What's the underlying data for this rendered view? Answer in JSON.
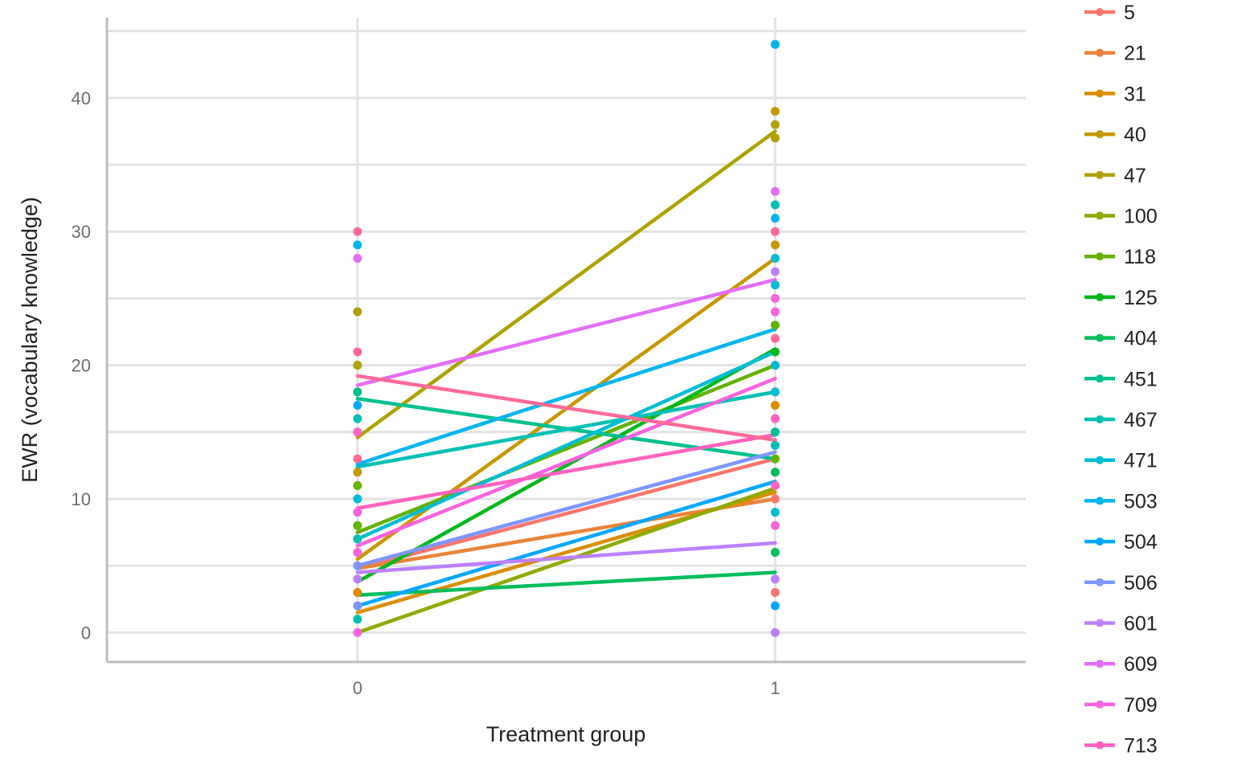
{
  "chart_data": {
    "type": "line",
    "xlabel": "Treatment group",
    "ylabel": "EWR (vocabulary knowledge)",
    "x_categories": [
      "0",
      "1"
    ],
    "xlim": [
      -0.6,
      1.6
    ],
    "ylim": [
      -2.2,
      46
    ],
    "y_ticks": [
      0,
      10,
      20,
      30,
      40
    ],
    "y_minor_ticks": [
      5,
      15,
      25,
      35,
      45
    ],
    "grid": true,
    "legend_position": "right",
    "series": [
      {
        "name": "5",
        "color": "#F8766D",
        "line": [
          4.8,
          13.0
        ]
      },
      {
        "name": "21",
        "color": "#EC8239",
        "line": [
          4.8,
          10.0
        ]
      },
      {
        "name": "31",
        "color": "#DB8E00",
        "line": [
          1.5,
          10.5
        ]
      },
      {
        "name": "40",
        "color": "#C79800",
        "line": [
          5.5,
          28.0
        ]
      },
      {
        "name": "47",
        "color": "#AEA200",
        "line": [
          14.6,
          37.5
        ]
      },
      {
        "name": "100",
        "color": "#8FAA00",
        "line": [
          0.0,
          10.8
        ]
      },
      {
        "name": "118",
        "color": "#64B200",
        "line": [
          7.5,
          20.0
        ]
      },
      {
        "name": "125",
        "color": "#00B81B",
        "line": [
          3.8,
          21.2
        ]
      },
      {
        "name": "404",
        "color": "#00BD5C",
        "line": [
          2.8,
          4.5
        ]
      },
      {
        "name": "451",
        "color": "#00C08E",
        "line": [
          17.5,
          13.0
        ]
      },
      {
        "name": "467",
        "color": "#00C0B4",
        "line": [
          12.4,
          18.0
        ]
      },
      {
        "name": "471",
        "color": "#00BDD4",
        "line": [
          7.0,
          21.0
        ]
      },
      {
        "name": "503",
        "color": "#00B5EE",
        "line": [
          12.6,
          22.7
        ]
      },
      {
        "name": "504",
        "color": "#00A7FF",
        "line": [
          2.0,
          11.3
        ]
      },
      {
        "name": "506",
        "color": "#7F96FF",
        "line": [
          5.0,
          13.5
        ]
      },
      {
        "name": "601",
        "color": "#BC81FF",
        "line": [
          4.5,
          6.7
        ]
      },
      {
        "name": "609",
        "color": "#E26EF7",
        "line": [
          18.5,
          26.4
        ]
      },
      {
        "name": "709",
        "color": "#F863DF",
        "line": [
          6.5,
          19.0
        ]
      },
      {
        "name": "713",
        "color": "#FF62BF",
        "line": [
          9.3,
          14.8
        ]
      },
      {
        "name": "",
        "color": "#FF6A98",
        "line": [
          19.2,
          14.4
        ]
      }
    ],
    "points": [
      {
        "x": "0",
        "y": 30,
        "color": "#FF6A98"
      },
      {
        "x": "0",
        "y": 29,
        "color": "#00B5EE"
      },
      {
        "x": "0",
        "y": 28,
        "color": "#E26EF7"
      },
      {
        "x": "0",
        "y": 24,
        "color": "#AEA200"
      },
      {
        "x": "0",
        "y": 21,
        "color": "#FF6A98"
      },
      {
        "x": "0",
        "y": 20,
        "color": "#AEA200"
      },
      {
        "x": "0",
        "y": 18,
        "color": "#00C08E"
      },
      {
        "x": "0",
        "y": 17,
        "color": "#00A7FF"
      },
      {
        "x": "0",
        "y": 16,
        "color": "#00C0B4"
      },
      {
        "x": "0",
        "y": 15,
        "color": "#FF62BF"
      },
      {
        "x": "0",
        "y": 13,
        "color": "#FF6A98"
      },
      {
        "x": "0",
        "y": 12,
        "color": "#C79800"
      },
      {
        "x": "0",
        "y": 11,
        "color": "#64B200"
      },
      {
        "x": "0",
        "y": 10,
        "color": "#00BDD4"
      },
      {
        "x": "0",
        "y": 9,
        "color": "#F863DF"
      },
      {
        "x": "0",
        "y": 8,
        "color": "#64B200"
      },
      {
        "x": "0",
        "y": 7,
        "color": "#00C0B4"
      },
      {
        "x": "0",
        "y": 6,
        "color": "#F863DF"
      },
      {
        "x": "0",
        "y": 5,
        "color": "#7F96FF"
      },
      {
        "x": "0",
        "y": 4,
        "color": "#BC81FF"
      },
      {
        "x": "0",
        "y": 3,
        "color": "#DB8E00"
      },
      {
        "x": "0",
        "y": 2,
        "color": "#7F96FF"
      },
      {
        "x": "0",
        "y": 1,
        "color": "#00C0B4"
      },
      {
        "x": "0",
        "y": 0,
        "color": "#F863DF"
      },
      {
        "x": "1",
        "y": 44,
        "color": "#00B5EE"
      },
      {
        "x": "1",
        "y": 39,
        "color": "#C79800"
      },
      {
        "x": "1",
        "y": 38,
        "color": "#AEA200"
      },
      {
        "x": "1",
        "y": 37,
        "color": "#AEA200"
      },
      {
        "x": "1",
        "y": 33,
        "color": "#E26EF7"
      },
      {
        "x": "1",
        "y": 32,
        "color": "#00C0B4"
      },
      {
        "x": "1",
        "y": 31,
        "color": "#00B5EE"
      },
      {
        "x": "1",
        "y": 30,
        "color": "#FF6A98"
      },
      {
        "x": "1",
        "y": 29,
        "color": "#C79800"
      },
      {
        "x": "1",
        "y": 28,
        "color": "#00BDD4"
      },
      {
        "x": "1",
        "y": 27,
        "color": "#BC81FF"
      },
      {
        "x": "1",
        "y": 26,
        "color": "#00BDD4"
      },
      {
        "x": "1",
        "y": 25,
        "color": "#F863DF"
      },
      {
        "x": "1",
        "y": 24,
        "color": "#F863DF"
      },
      {
        "x": "1",
        "y": 23,
        "color": "#64B200"
      },
      {
        "x": "1",
        "y": 22,
        "color": "#FF6A98"
      },
      {
        "x": "1",
        "y": 21,
        "color": "#00B81B"
      },
      {
        "x": "1",
        "y": 20,
        "color": "#00BDD4"
      },
      {
        "x": "1",
        "y": 18,
        "color": "#00BDD4"
      },
      {
        "x": "1",
        "y": 17,
        "color": "#DB8E00"
      },
      {
        "x": "1",
        "y": 16,
        "color": "#FF62BF"
      },
      {
        "x": "1",
        "y": 15,
        "color": "#00C08E"
      },
      {
        "x": "1",
        "y": 14,
        "color": "#00C0B4"
      },
      {
        "x": "1",
        "y": 13,
        "color": "#64B200"
      },
      {
        "x": "1",
        "y": 12,
        "color": "#00BD5C"
      },
      {
        "x": "1",
        "y": 11,
        "color": "#FF62BF"
      },
      {
        "x": "1",
        "y": 10,
        "color": "#F8766D"
      },
      {
        "x": "1",
        "y": 9,
        "color": "#00BDD4"
      },
      {
        "x": "1",
        "y": 8,
        "color": "#F863DF"
      },
      {
        "x": "1",
        "y": 6,
        "color": "#00BD5C"
      },
      {
        "x": "1",
        "y": 4,
        "color": "#BC81FF"
      },
      {
        "x": "1",
        "y": 3,
        "color": "#F8766D"
      },
      {
        "x": "1",
        "y": 2,
        "color": "#00A7FF"
      },
      {
        "x": "1",
        "y": 0,
        "color": "#BC81FF"
      }
    ]
  }
}
